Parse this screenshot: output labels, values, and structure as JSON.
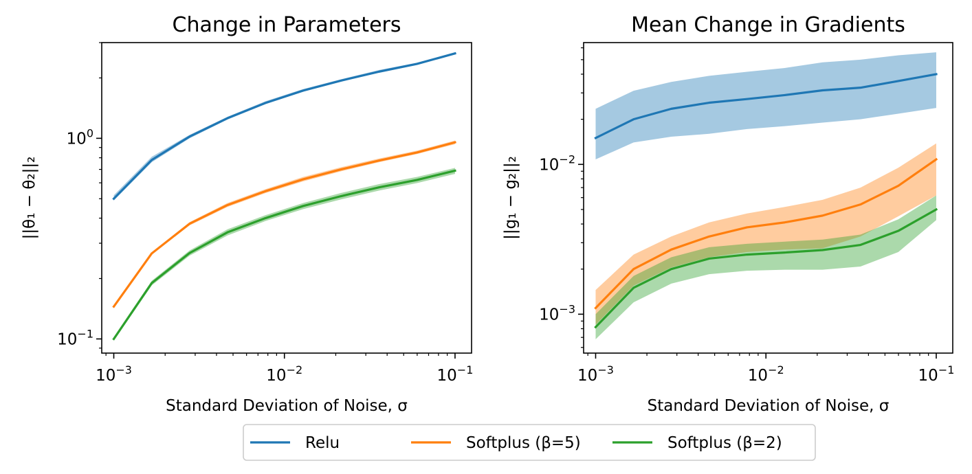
{
  "chart_data": [
    {
      "type": "line",
      "title": "Change in Parameters",
      "xlabel": "Standard Deviation of Noise, σ",
      "ylabel": "||θ₁ − θ₂||₂",
      "xscale": "log",
      "yscale": "log",
      "xlim": [
        0.00085,
        0.125
      ],
      "ylim": [
        0.085,
        3.0
      ],
      "xticks": [
        {
          "value": 0.001,
          "base": "10",
          "exp": "−3"
        },
        {
          "value": 0.01,
          "base": "10",
          "exp": "−2"
        },
        {
          "value": 0.1,
          "base": "10",
          "exp": "−1"
        }
      ],
      "yticks": [
        {
          "value": 0.1,
          "base": "10",
          "exp": "−1"
        },
        {
          "value": 1.0,
          "base": "10",
          "exp": "0"
        }
      ],
      "x": [
        0.001,
        0.00167,
        0.00278,
        0.00464,
        0.00774,
        0.0129,
        0.0215,
        0.0359,
        0.0599,
        0.1
      ],
      "series": [
        {
          "name": "Relu",
          "color": "#1f77b4",
          "values": [
            0.5,
            0.78,
            1.02,
            1.26,
            1.5,
            1.73,
            1.94,
            2.15,
            2.35,
            2.65
          ],
          "lower": [
            0.49,
            0.76,
            1.0,
            1.24,
            1.48,
            1.71,
            1.92,
            2.12,
            2.32,
            2.62
          ],
          "upper": [
            0.52,
            0.81,
            1.04,
            1.28,
            1.53,
            1.76,
            1.97,
            2.19,
            2.38,
            2.68
          ]
        },
        {
          "name": "Softplus (β=5)",
          "color": "#ff7f0e",
          "values": [
            0.145,
            0.267,
            0.375,
            0.465,
            0.545,
            0.625,
            0.7,
            0.775,
            0.85,
            0.955
          ],
          "lower": [
            0.144,
            0.264,
            0.368,
            0.455,
            0.533,
            0.61,
            0.685,
            0.76,
            0.835,
            0.935
          ],
          "upper": [
            0.147,
            0.27,
            0.382,
            0.476,
            0.558,
            0.642,
            0.718,
            0.793,
            0.868,
            0.975
          ]
        },
        {
          "name": "Softplus (β=2)",
          "color": "#2ca02c",
          "values": [
            0.1,
            0.19,
            0.268,
            0.34,
            0.4,
            0.46,
            0.515,
            0.57,
            0.62,
            0.69
          ],
          "lower": [
            0.098,
            0.185,
            0.26,
            0.328,
            0.387,
            0.444,
            0.496,
            0.549,
            0.598,
            0.665
          ],
          "upper": [
            0.102,
            0.195,
            0.276,
            0.352,
            0.414,
            0.476,
            0.534,
            0.591,
            0.642,
            0.712
          ]
        }
      ]
    },
    {
      "type": "line",
      "title": "Mean Change in Gradients",
      "xlabel": "Standard Deviation of Noise, σ",
      "ylabel": "||g₁ − g₂||₂",
      "xscale": "log",
      "yscale": "log",
      "xlim": [
        0.00085,
        0.125
      ],
      "ylim": [
        0.00055,
        0.065
      ],
      "xticks": [
        {
          "value": 0.001,
          "base": "10",
          "exp": "−3"
        },
        {
          "value": 0.01,
          "base": "10",
          "exp": "−2"
        },
        {
          "value": 0.1,
          "base": "10",
          "exp": "−1"
        }
      ],
      "yticks": [
        {
          "value": 0.001,
          "base": "10",
          "exp": "−3"
        },
        {
          "value": 0.01,
          "base": "10",
          "exp": "−2"
        }
      ],
      "x": [
        0.001,
        0.00167,
        0.00278,
        0.00464,
        0.00774,
        0.0129,
        0.0215,
        0.0359,
        0.0599,
        0.1
      ],
      "series": [
        {
          "name": "Relu",
          "color": "#1f77b4",
          "values": [
            0.015,
            0.02,
            0.0235,
            0.0258,
            0.0273,
            0.029,
            0.0312,
            0.0325,
            0.036,
            0.04
          ],
          "lower": [
            0.0108,
            0.014,
            0.0153,
            0.016,
            0.0172,
            0.018,
            0.019,
            0.02,
            0.0218,
            0.0238
          ],
          "upper": [
            0.0235,
            0.031,
            0.0355,
            0.039,
            0.0415,
            0.044,
            0.048,
            0.05,
            0.0535,
            0.056
          ]
        },
        {
          "name": "Softplus (β=5)",
          "color": "#ff7f0e",
          "values": [
            0.0011,
            0.002,
            0.0027,
            0.0033,
            0.0038,
            0.0041,
            0.00455,
            0.0054,
            0.0072,
            0.0108
          ],
          "lower": [
            0.00085,
            0.00155,
            0.00205,
            0.0024,
            0.0026,
            0.0027,
            0.00275,
            0.0033,
            0.0045,
            0.0062
          ],
          "upper": [
            0.00145,
            0.0025,
            0.0033,
            0.0041,
            0.0047,
            0.0052,
            0.0058,
            0.007,
            0.0095,
            0.0138
          ]
        },
        {
          "name": "Softplus (β=2)",
          "color": "#2ca02c",
          "values": [
            0.00082,
            0.0015,
            0.002,
            0.00235,
            0.0025,
            0.00258,
            0.00268,
            0.0029,
            0.0036,
            0.005
          ],
          "lower": [
            0.00068,
            0.0012,
            0.0016,
            0.00185,
            0.00195,
            0.00198,
            0.00198,
            0.00208,
            0.0026,
            0.00425
          ],
          "upper": [
            0.001,
            0.0018,
            0.0024,
            0.0028,
            0.00295,
            0.00305,
            0.00315,
            0.0034,
            0.0043,
            0.0062
          ]
        }
      ]
    }
  ],
  "legend": {
    "placement": "bottom-center",
    "items": [
      "Relu",
      "Softplus (β=5)",
      "Softplus (β=2)"
    ]
  }
}
